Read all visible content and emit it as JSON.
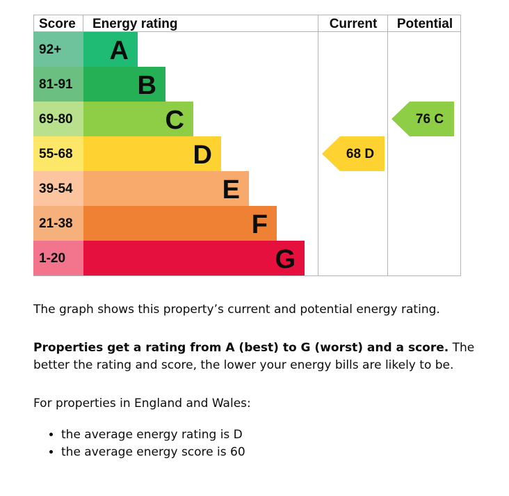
{
  "chart_data": {
    "type": "bar",
    "headers": {
      "score": "Score",
      "rating": "Energy rating",
      "current": "Current",
      "potential": "Potential"
    },
    "bands": [
      {
        "letter": "A",
        "range": "92+",
        "color": "#0c7d4b",
        "score_bg": "#6fc39c",
        "bar": "#1fbb75"
      },
      {
        "letter": "B",
        "range": "81-91",
        "color": "#1ba358",
        "score_bg": "#6bbf80",
        "bar": "#25b056"
      },
      {
        "letter": "C",
        "range": "69-80",
        "color": "#8dce46",
        "score_bg": "#b9e08c",
        "bar": "#8dce46"
      },
      {
        "letter": "D",
        "range": "55-68",
        "color": "#ffd500",
        "score_bg": "#fde769",
        "bar": "#fed230"
      },
      {
        "letter": "E",
        "range": "39-54",
        "color": "#fcaa65",
        "score_bg": "#fcc59f",
        "bar": "#f8a96c"
      },
      {
        "letter": "F",
        "range": "21-38",
        "color": "#ef8023",
        "score_bg": "#f5b07c",
        "bar": "#ee8133"
      },
      {
        "letter": "G",
        "range": "1-20",
        "color": "#e9153b",
        "score_bg": "#f2758d",
        "bar": "#e6103f"
      }
    ],
    "current": {
      "score": 68,
      "letter": "D",
      "label": "68  D",
      "color": "#fed230"
    },
    "potential": {
      "score": 76,
      "letter": "C",
      "label": "76  C",
      "color": "#8dce46"
    }
  },
  "text": {
    "intro": "The graph shows this property’s current and potential energy rating.",
    "rating_bold": "Properties get a rating from A (best) to G (worst) and a score.",
    "rating_rest": " The better the rating and score, the lower your energy bills are likely to be.",
    "avg_heading": "For properties in England and Wales:",
    "avg_items": [
      "the average energy rating is D",
      "the average energy score is 60"
    ]
  }
}
